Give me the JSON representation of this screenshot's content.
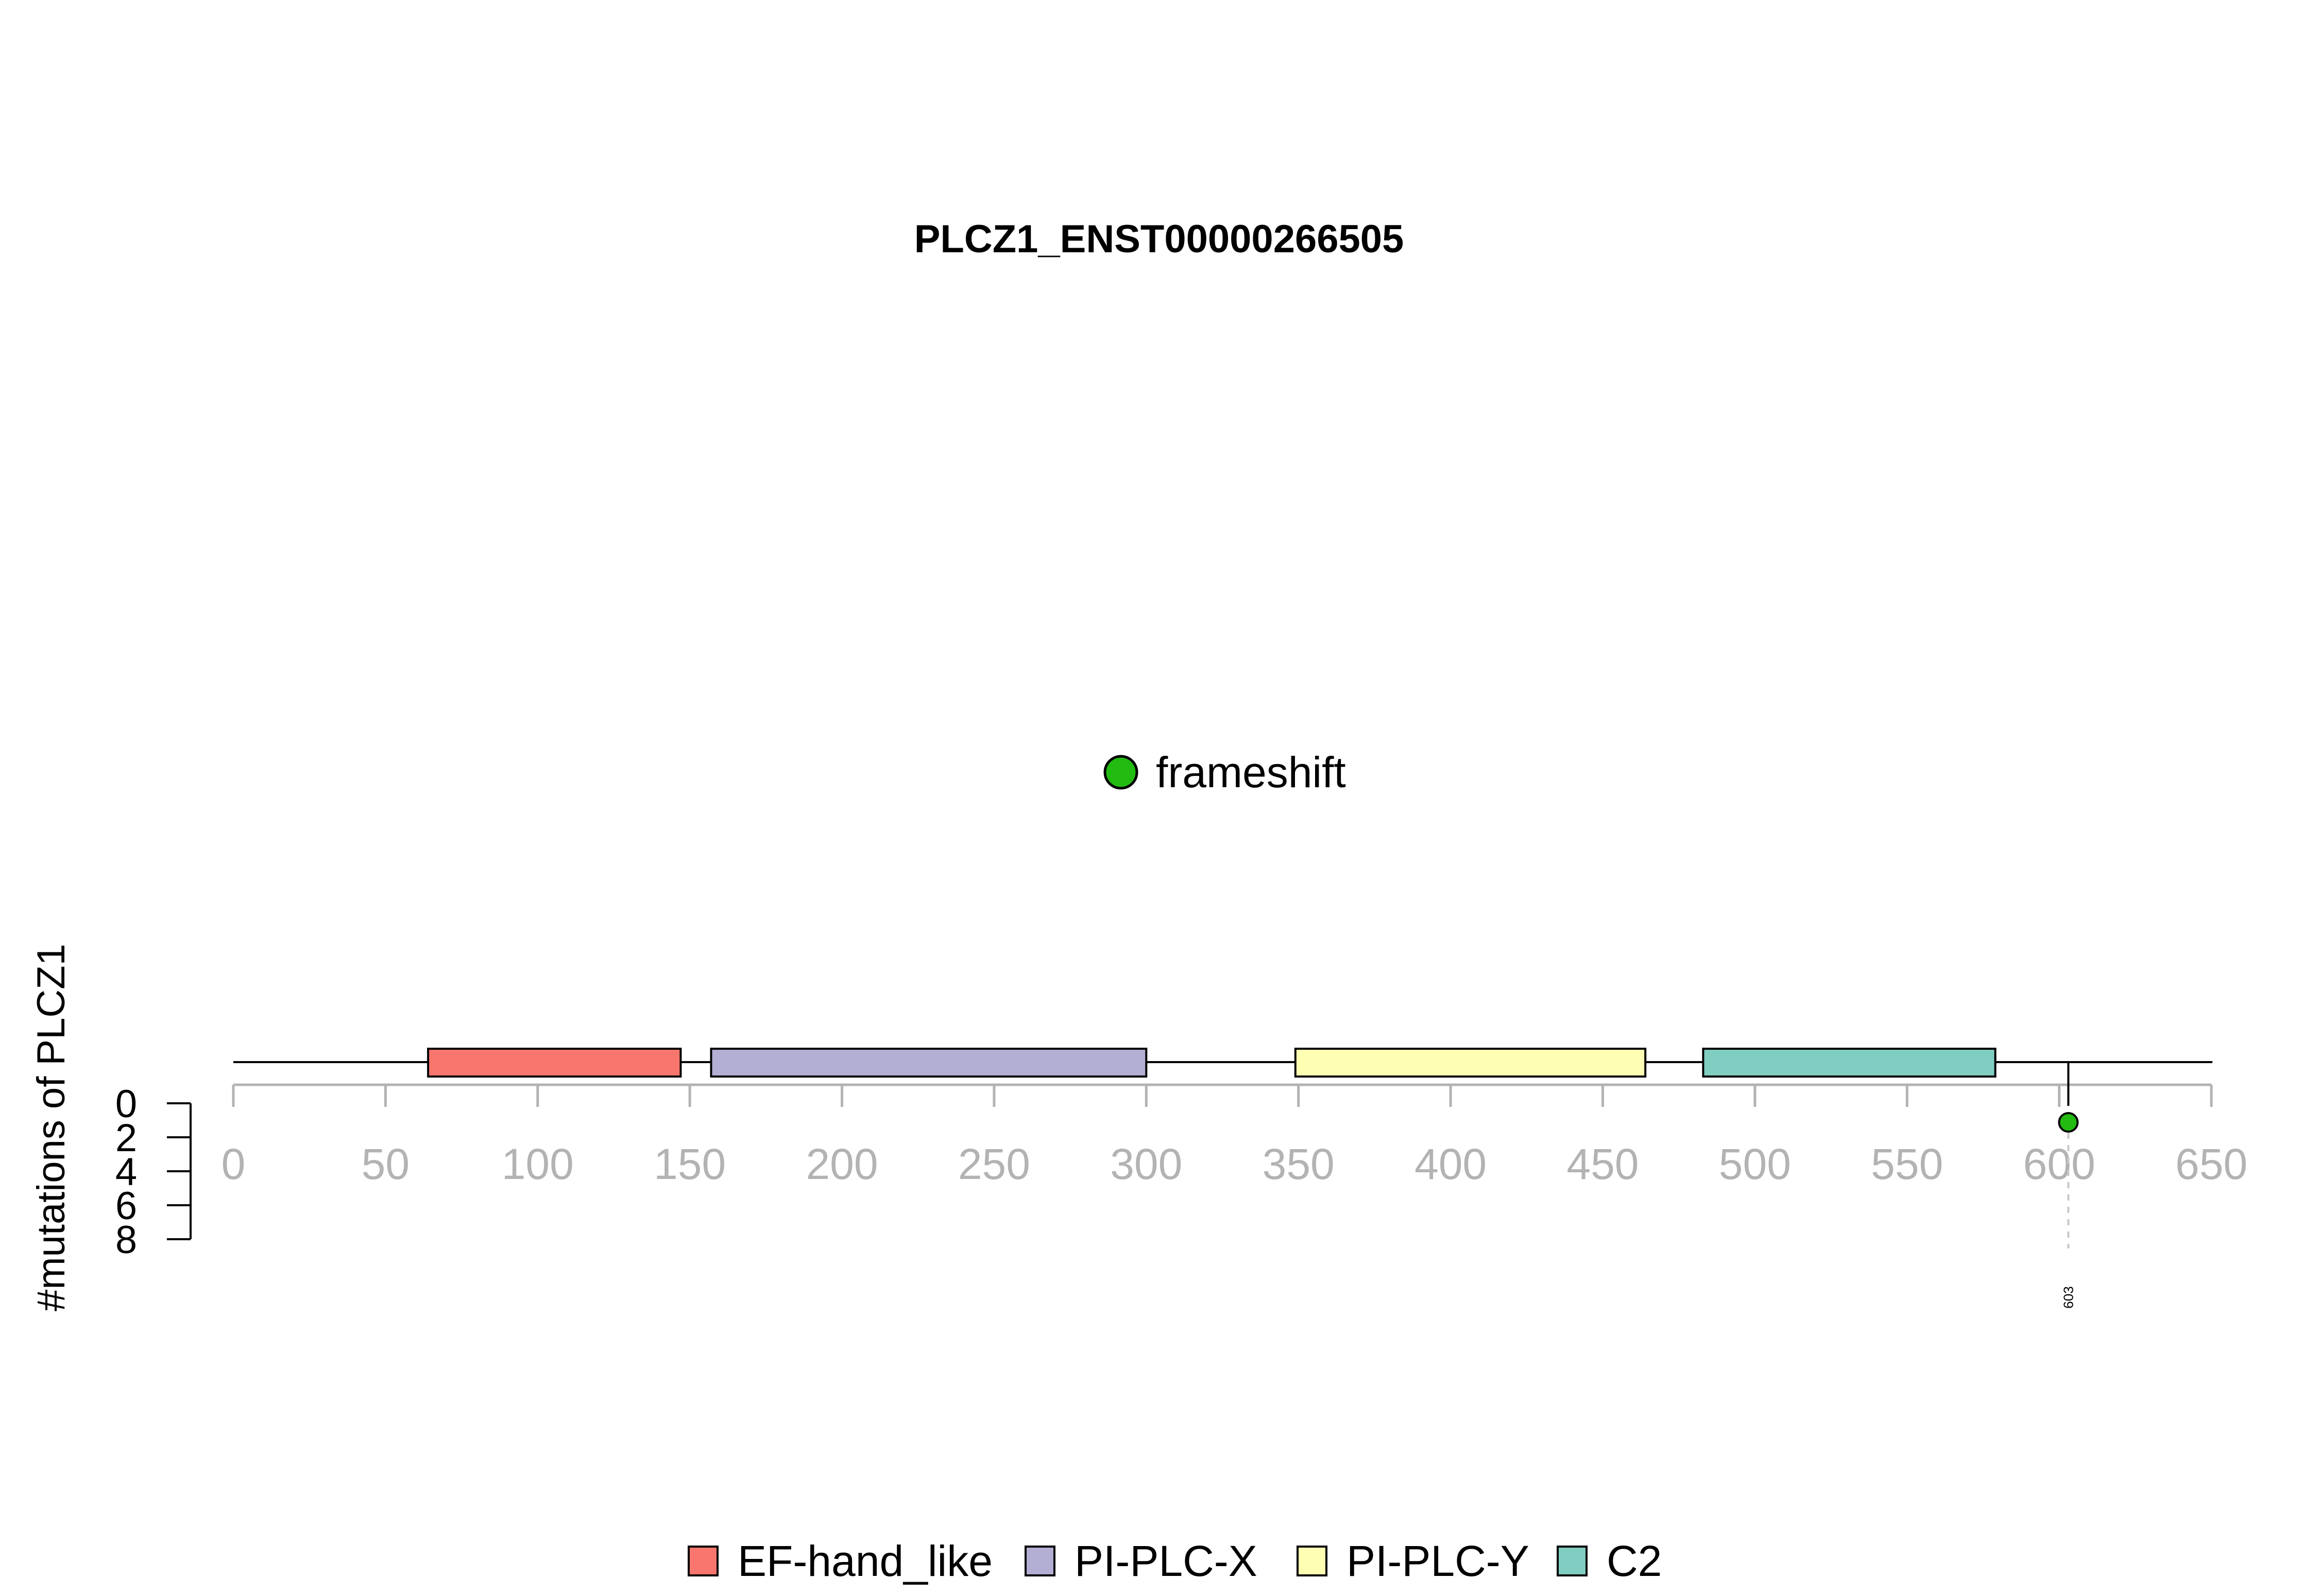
{
  "chart_data": {
    "type": "lollipop",
    "title": "PLCZ1_ENST00000266505",
    "ylabel": "#mutations of PLCZ1",
    "x_ticks": [
      0,
      50,
      100,
      150,
      200,
      250,
      300,
      350,
      400,
      450,
      500,
      550,
      600,
      650
    ],
    "y_ticks": [
      0,
      2,
      4,
      6,
      8
    ],
    "xlim": [
      0,
      650
    ],
    "ylim": [
      0,
      8
    ],
    "domains": [
      {
        "name": "EF-hand_like",
        "start": 64,
        "end": 147,
        "color": "#F8766D"
      },
      {
        "name": "PI-PLC-X",
        "start": 157,
        "end": 300,
        "color": "#B3AED3"
      },
      {
        "name": "PI-PLC-Y",
        "start": 349,
        "end": 464,
        "color": "#FFFFB3"
      },
      {
        "name": "C2",
        "start": 483,
        "end": 579,
        "color": "#80CDC1"
      }
    ],
    "mutations": [
      {
        "position": 603,
        "count": 1,
        "type": "frameshift",
        "label": "603"
      }
    ],
    "mutation_types": [
      {
        "name": "frameshift",
        "color": "#22BB11"
      }
    ]
  }
}
